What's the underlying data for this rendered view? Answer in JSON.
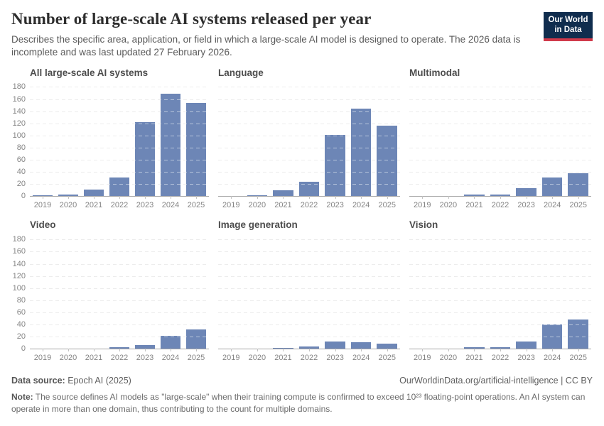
{
  "header": {
    "title": "Number of large-scale AI systems released per year",
    "subtitle": "Describes the specific area, application, or field in which a large-scale AI model is designed to operate. The 2026 data is incomplete and was last updated 27 February 2026.",
    "logo": {
      "line1": "Our World",
      "line2": "in Data",
      "bg_color": "#102d4e",
      "accent_color": "#d0394a"
    }
  },
  "chart_data": {
    "type": "bar",
    "categories": [
      "2019",
      "2020",
      "2021",
      "2022",
      "2023",
      "2024",
      "2025"
    ],
    "ylim": [
      0,
      180
    ],
    "yticks": [
      0,
      20,
      40,
      60,
      80,
      100,
      120,
      140,
      160,
      180
    ],
    "grid": "horizontal-dashed",
    "legend": "none",
    "bar_color": "#6d86b6",
    "panels": [
      {
        "title": "All large-scale AI systems",
        "values": [
          1,
          2,
          10,
          30,
          121,
          168,
          153
        ]
      },
      {
        "title": "Language",
        "values": [
          0,
          1,
          9,
          23,
          101,
          144,
          116
        ]
      },
      {
        "title": "Multimodal",
        "values": [
          0,
          0,
          2,
          2,
          13,
          30,
          37
        ]
      },
      {
        "title": "Video",
        "values": [
          0,
          0,
          0,
          2,
          6,
          21,
          31
        ]
      },
      {
        "title": "Image generation",
        "values": [
          0,
          0,
          1,
          3,
          12,
          10,
          8
        ]
      },
      {
        "title": "Vision",
        "values": [
          0,
          0,
          2,
          2,
          12,
          40,
          48
        ]
      }
    ]
  },
  "footer": {
    "source_label": "Data source:",
    "source_value": " Epoch AI (2025)",
    "attribution": "OurWorldinData.org/artificial-intelligence | CC BY",
    "note_label": "Note:",
    "note_text": " The source defines AI models as \"large-scale\" when their training compute is confirmed to exceed 10²³ floating-point operations. An AI system can operate in more than one domain, thus contributing to the count for multiple domains."
  }
}
